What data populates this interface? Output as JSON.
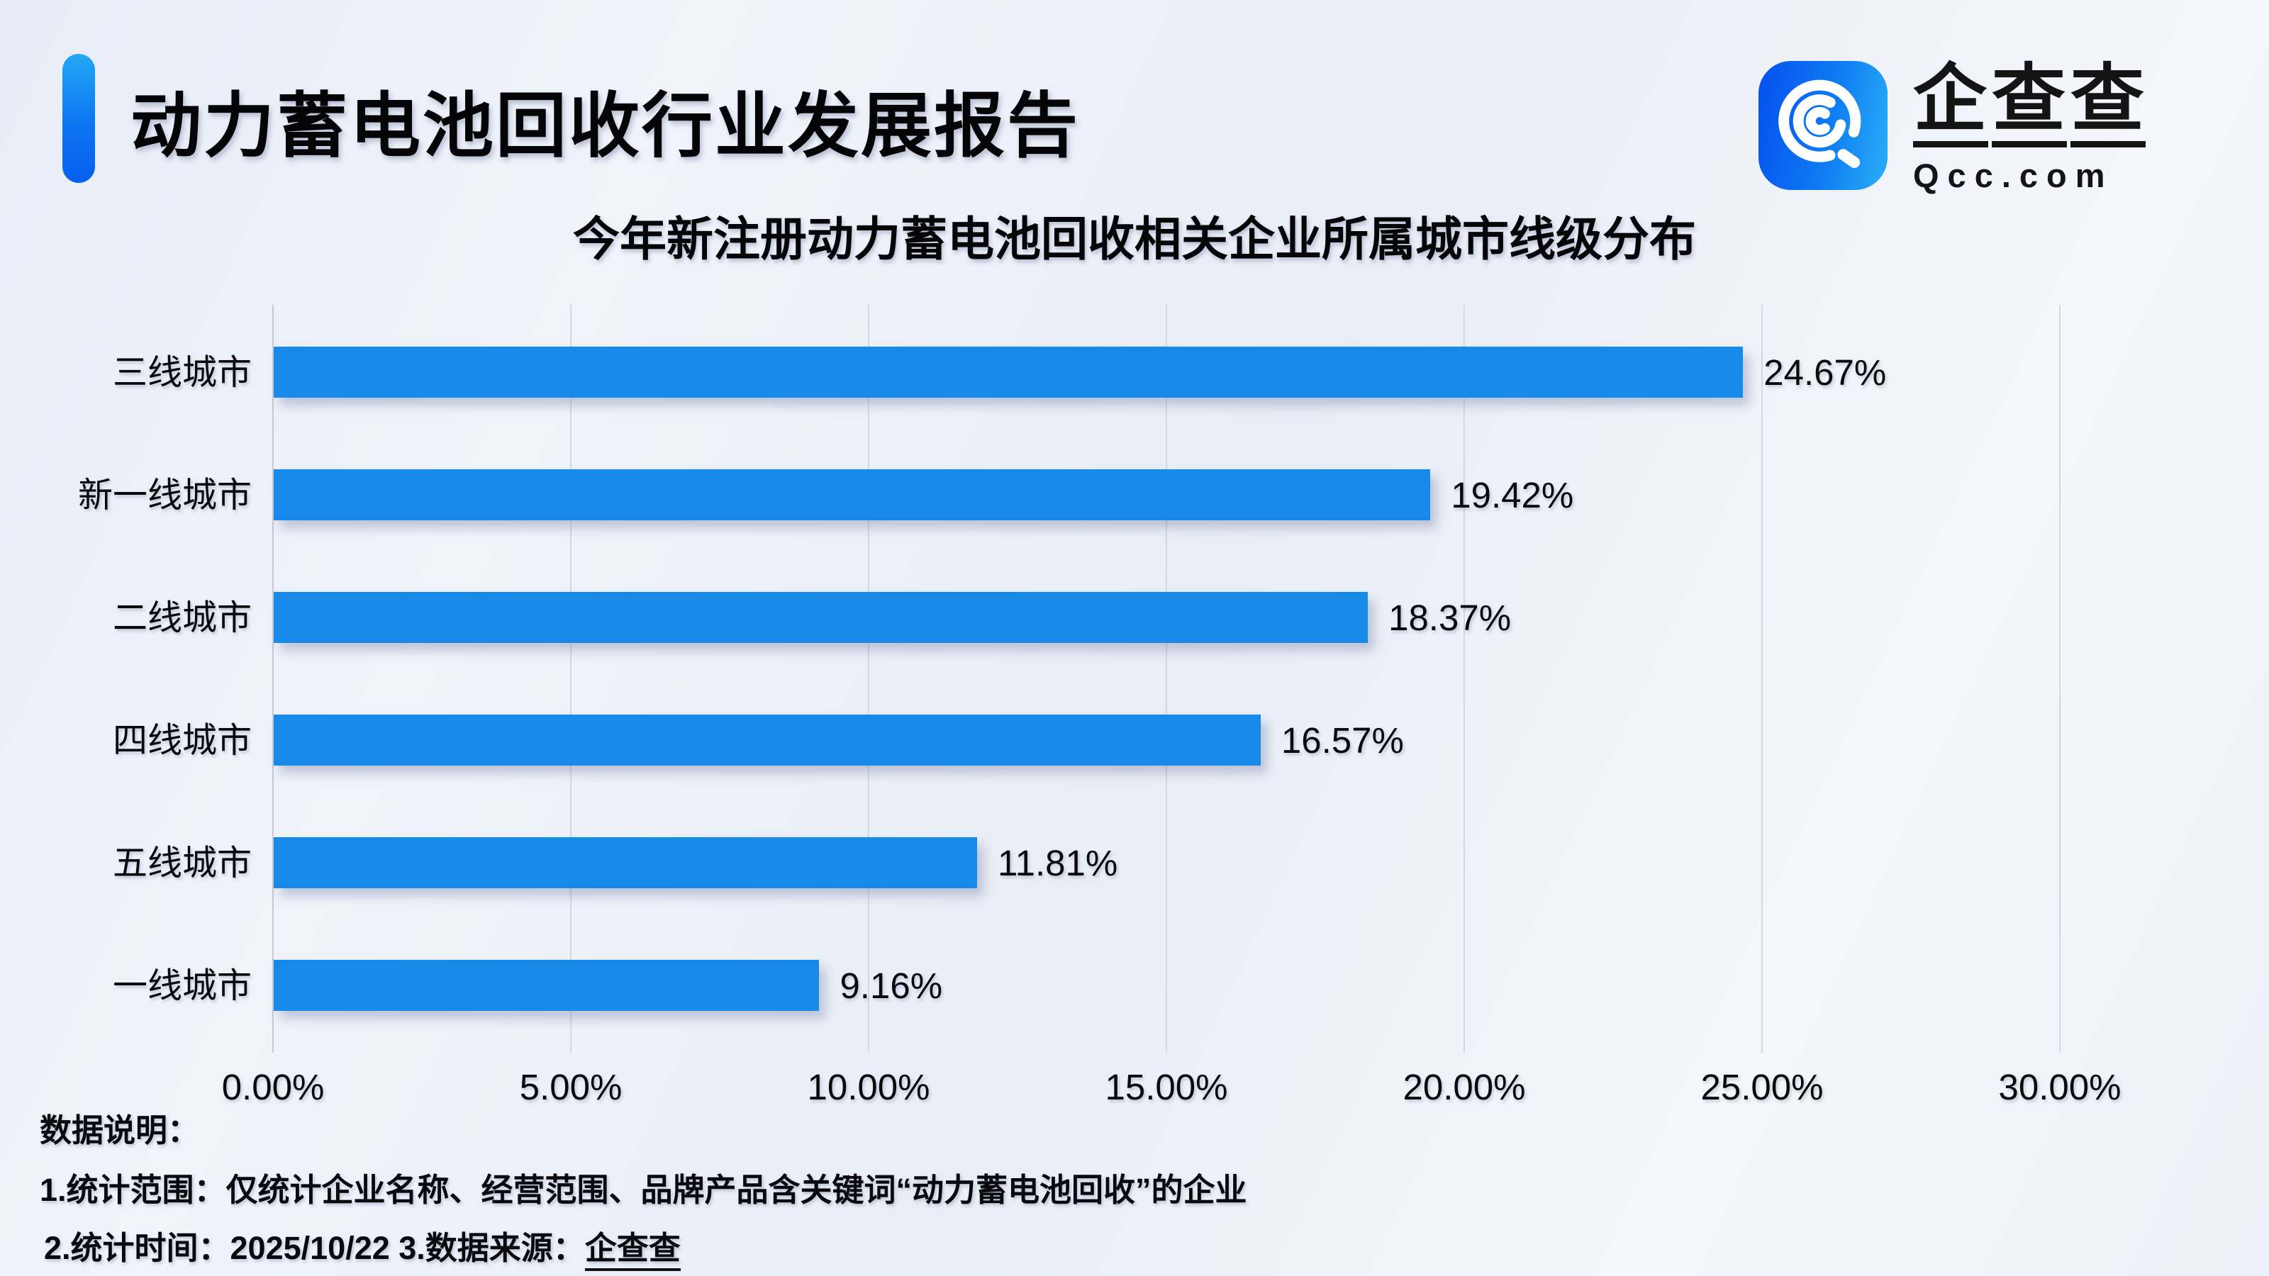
{
  "header": {
    "title": "动力蓄电池回收行业发展报告",
    "logo": {
      "name_text": "企查查",
      "domain_text": "Qcc.com",
      "icon": "qcc-magnifier-q-icon",
      "square_color_start": "#0656EE",
      "square_color_end": "#27A9F7"
    },
    "accent_color_top": "#23A7F6",
    "accent_color_bottom": "#0660EE"
  },
  "chart_data": {
    "type": "bar",
    "orientation": "horizontal",
    "title": "今年新注册动力蓄电池回收相关企业所属城市线级分布",
    "categories": [
      "三线城市",
      "新一线城市",
      "二线城市",
      "四线城市",
      "五线城市",
      "一线城市"
    ],
    "values": [
      24.67,
      19.42,
      18.37,
      16.57,
      11.81,
      9.16
    ],
    "value_labels": [
      "24.67%",
      "19.42%",
      "18.37%",
      "16.57%",
      "11.81%",
      "9.16%"
    ],
    "x_ticks": [
      "0.00%",
      "5.00%",
      "10.00%",
      "15.00%",
      "20.00%",
      "25.00%",
      "30.00%"
    ],
    "x_tick_values": [
      0,
      5,
      10,
      15,
      20,
      25,
      30
    ],
    "xlim": [
      0,
      30
    ],
    "xlabel": "",
    "ylabel": "",
    "grid": "vertical",
    "legend": "none",
    "bar_color": "#1789E8"
  },
  "footer": {
    "heading": "数据说明：",
    "line1": "1.统计范围：仅统计企业名称、经营范围、品牌产品含关键词“动力蓄电池回收”的企业",
    "line2_prefix": "2.统计时间：2025/10/22 3.数据来源：",
    "line2_source": "企查查"
  }
}
